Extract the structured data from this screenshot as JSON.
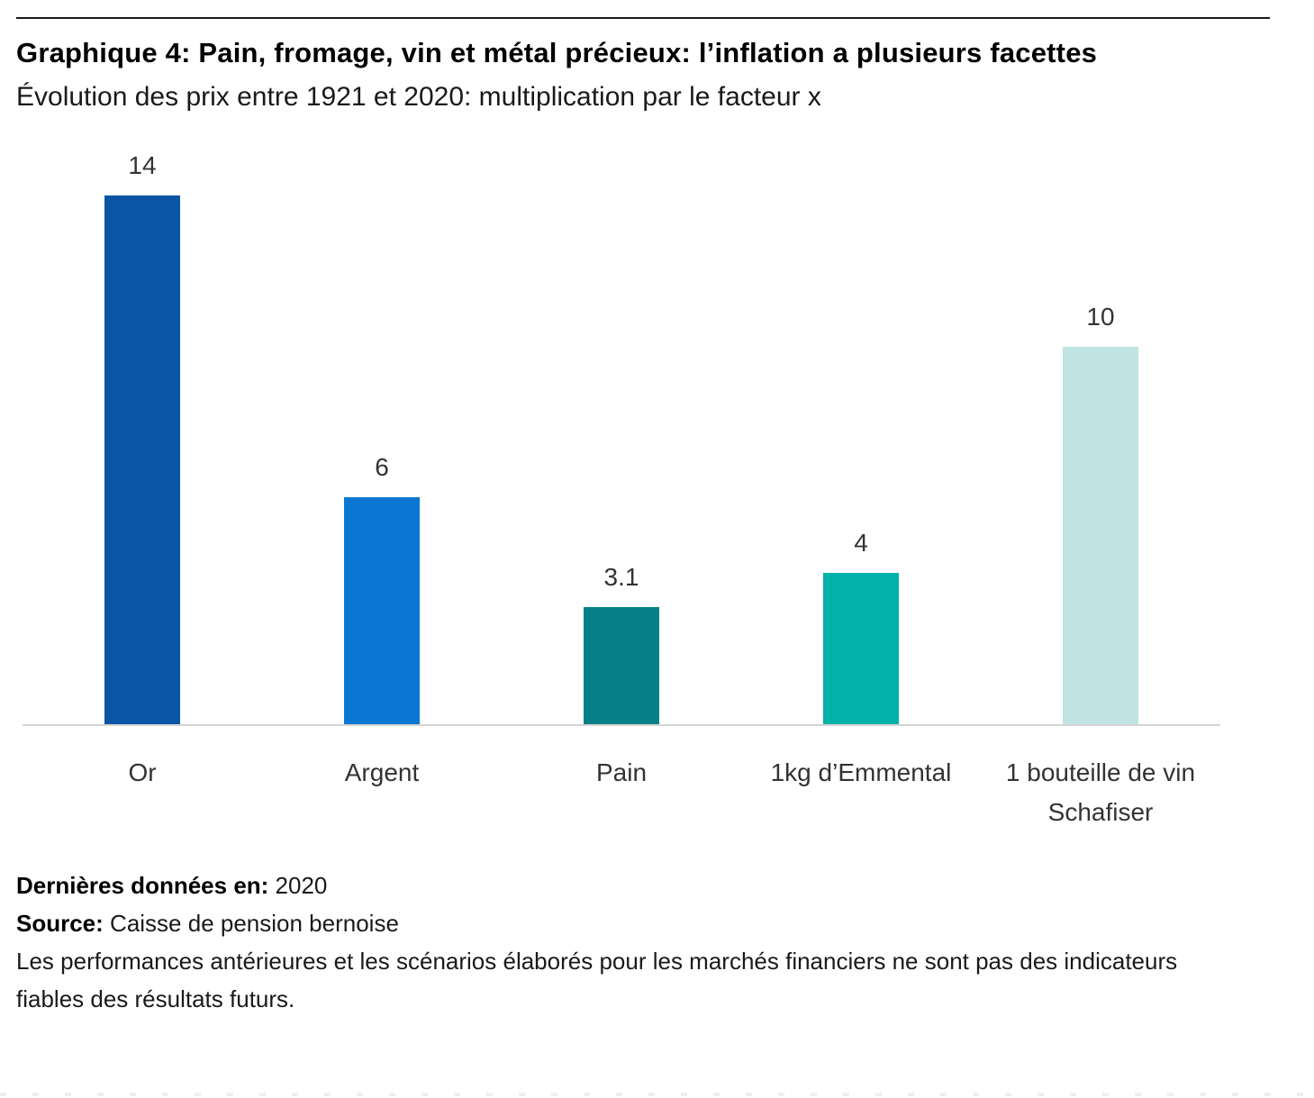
{
  "chart_data": {
    "type": "bar",
    "title": "Graphique 4: Pain, fromage, vin et métal précieux: l’inflation a plusieurs facettes",
    "subtitle": "Évolution des prix entre 1921 et 2020: multiplication par le facteur x",
    "categories": [
      "Or",
      "Argent",
      "Pain",
      "1kg d’Emmental",
      "1 bouteille de vin Schafiser"
    ],
    "values": [
      14,
      6,
      3.1,
      4,
      10
    ],
    "value_labels": [
      "14",
      "6",
      "3.1",
      "4",
      "10"
    ],
    "bar_colors": [
      "#0b56a4",
      "#0a78d2",
      "#067f86",
      "#00b2aa",
      "#bfe4e1"
    ],
    "xlabel": "",
    "ylabel": "",
    "ylim": [
      0,
      14
    ],
    "grid": false,
    "legend": false,
    "data_labels": "above-bars",
    "axis_line_color": "#d4d4d4"
  },
  "footer": {
    "last_data_label": "Dernières données en:",
    "last_data_value": "2020",
    "source_label": "Source:",
    "source_value": "Caisse de pension bernoise",
    "disclaimer": "Les performances antérieures et les scénarios élaborés pour les marchés financiers ne sont pas des indicateurs fiables des résultats futurs."
  },
  "decor": {
    "top_rule_color": "#1a1a1a"
  }
}
